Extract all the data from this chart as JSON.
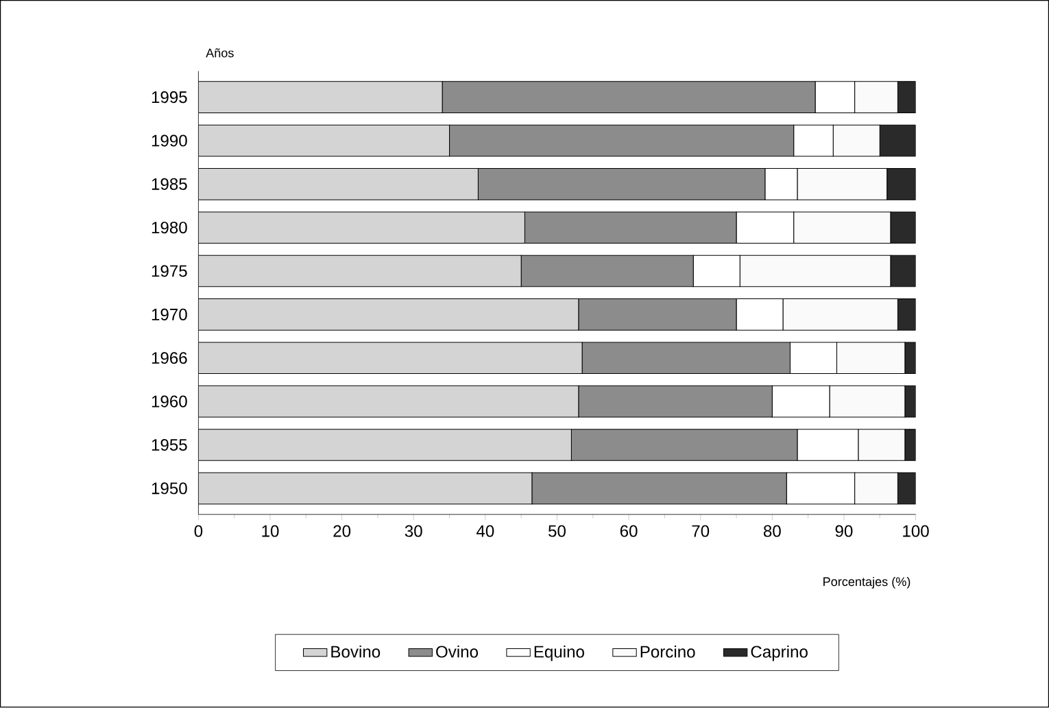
{
  "chart_data": {
    "type": "bar",
    "orientation": "horizontal",
    "stacked": true,
    "ylabel": "Años",
    "xlabel": "Porcentajes (%)",
    "categories": [
      "1995",
      "1990",
      "1985",
      "1980",
      "1975",
      "1970",
      "1966",
      "1960",
      "1955",
      "1950"
    ],
    "series": [
      {
        "name": "Bovino",
        "color": "#d4d4d4",
        "values": [
          34,
          35,
          39,
          45.5,
          45,
          53,
          53.5,
          53,
          52,
          46.5
        ]
      },
      {
        "name": "Ovino",
        "color": "#8c8c8c",
        "values": [
          52,
          48,
          40,
          29.5,
          24,
          22,
          29,
          27,
          31.5,
          35.5
        ]
      },
      {
        "name": "Equino",
        "color": "#ffffff",
        "values": [
          5.5,
          5.5,
          4.5,
          8,
          6.5,
          6.5,
          6.5,
          8,
          8.5,
          9.5
        ]
      },
      {
        "name": "Porcino",
        "color": "#fafafa",
        "values": [
          6,
          6.5,
          12.5,
          13.5,
          21,
          16,
          9.5,
          10.5,
          6.5,
          6
        ]
      },
      {
        "name": "Caprino",
        "color": "#2a2a2a",
        "values": [
          2.5,
          5,
          4,
          3.5,
          3.5,
          2.5,
          1.5,
          1.5,
          1.5,
          2.5
        ]
      }
    ],
    "xlim": [
      0,
      100
    ],
    "xticks": [
      0,
      10,
      20,
      30,
      40,
      50,
      60,
      70,
      80,
      90,
      100
    ],
    "grid": false,
    "legend": "bottom"
  }
}
